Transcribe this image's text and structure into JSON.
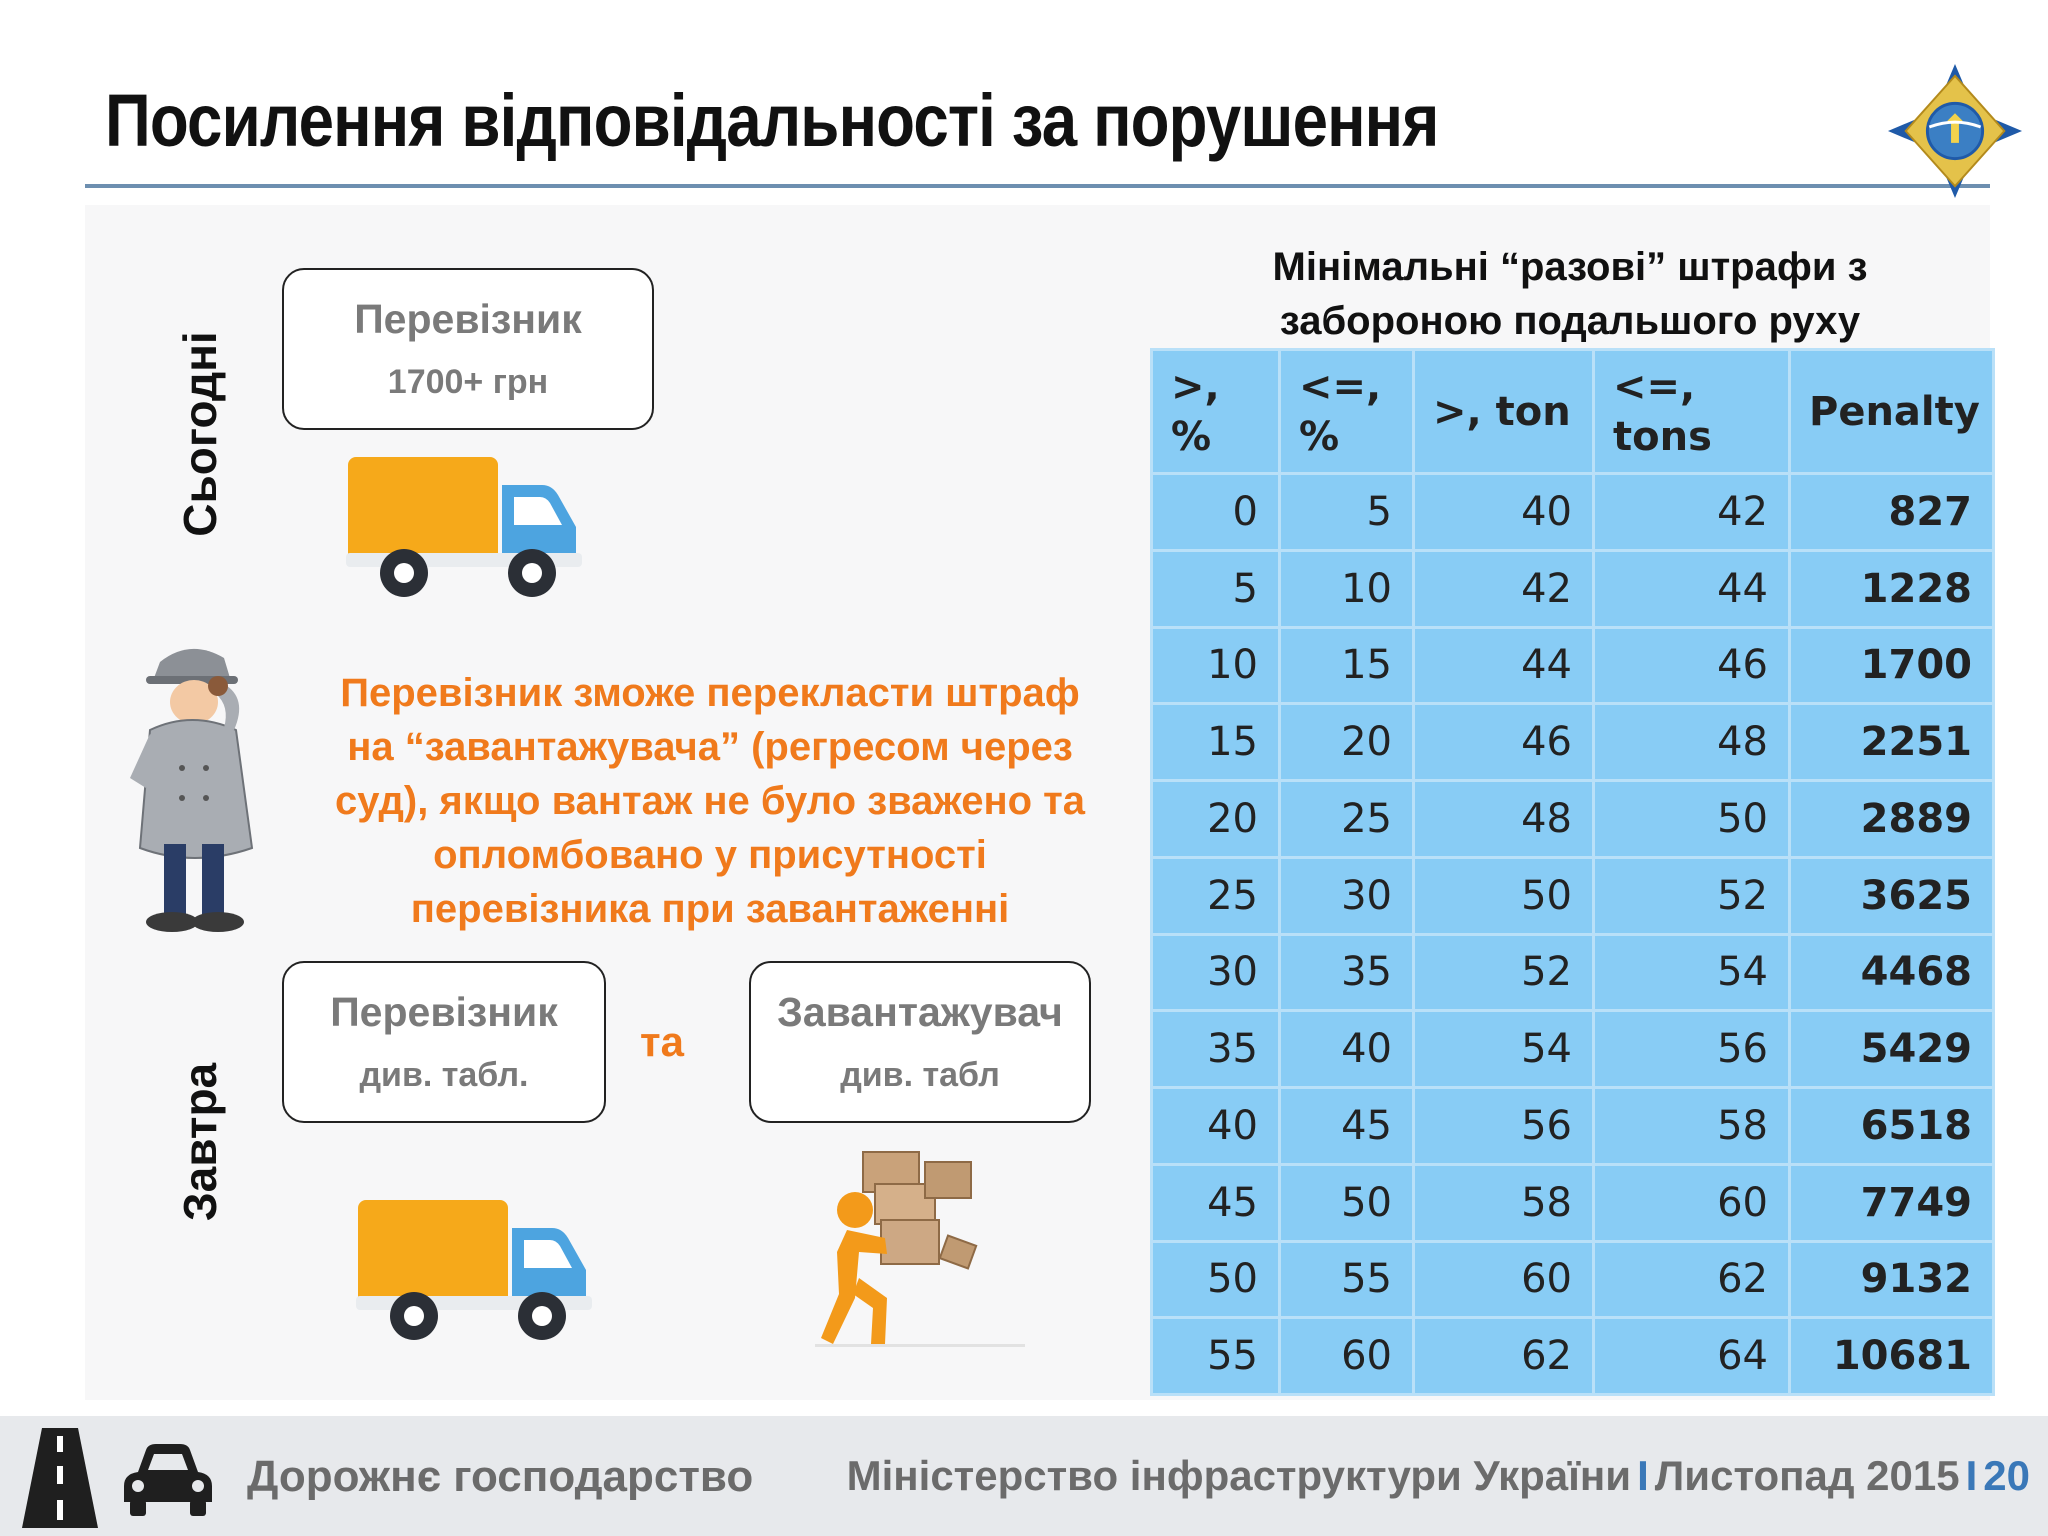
{
  "header": {
    "title": "Посилення відповідальності за порушення"
  },
  "today": {
    "label": "Сьогодні",
    "carrier_box": {
      "title": "Перевізник",
      "subtitle": "1700+ грн"
    }
  },
  "note": "Перевізник зможе перекласти штраф на “завантажувача” (регресом через суд), якщо вантаж не було зважено та опломбовано у присутності перевізника при завантаженні",
  "tomorrow": {
    "label": "Завтра",
    "carrier_box": {
      "title": "Перевізник",
      "subtitle": "див. табл."
    },
    "conjunction": "та",
    "loader_box": {
      "title": "Завантажувач",
      "subtitle": "див. табл"
    }
  },
  "table": {
    "title": "Мінімальні “разові” штрафи з забороною подальшого руху",
    "headers": [
      ">, %",
      "<=, %",
      ">, ton",
      "<=, tons",
      "Penalty"
    ],
    "rows": [
      [
        "0",
        "5",
        "40",
        "42",
        "827"
      ],
      [
        "5",
        "10",
        "42",
        "44",
        "1228"
      ],
      [
        "10",
        "15",
        "44",
        "46",
        "1700"
      ],
      [
        "15",
        "20",
        "46",
        "48",
        "2251"
      ],
      [
        "20",
        "25",
        "48",
        "50",
        "2889"
      ],
      [
        "25",
        "30",
        "50",
        "52",
        "3625"
      ],
      [
        "30",
        "35",
        "52",
        "54",
        "4468"
      ],
      [
        "35",
        "40",
        "54",
        "56",
        "5429"
      ],
      [
        "40",
        "45",
        "56",
        "58",
        "6518"
      ],
      [
        "45",
        "50",
        "58",
        "60",
        "7749"
      ],
      [
        "50",
        "55",
        "60",
        "62",
        "9132"
      ],
      [
        "55",
        "60",
        "62",
        "64",
        "10681"
      ]
    ]
  },
  "footer": {
    "left": "Дорожнє господарство",
    "ministry": "Міністерство інфраструктури України",
    "date": "Листопад 2015",
    "page": "20",
    "separator": "I"
  },
  "colors": {
    "accent_orange": "#f07a1c",
    "table_blue": "#88ccf5",
    "rule_blue": "#6d8fb0",
    "footer_gray": "#6b6b6b",
    "footer_blue": "#3a78b8"
  },
  "icons": [
    "ministry-emblem-icon",
    "truck-icon",
    "inspector-figure-icon",
    "loader-figure-icon",
    "road-icon",
    "car-icon"
  ]
}
